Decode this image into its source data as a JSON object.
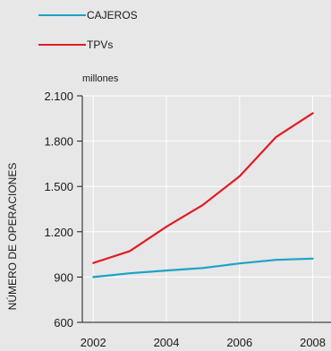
{
  "chart_data": {
    "type": "line",
    "unit_label": "millones",
    "ylabel": "NÚMERO DE OPERACIONES",
    "xlabel": "",
    "x": [
      2002,
      2003,
      2004,
      2005,
      2006,
      2007,
      2008
    ],
    "x_ticks": [
      "2002",
      "2004",
      "2006",
      "2008"
    ],
    "x_tick_values": [
      2002,
      2004,
      2006,
      2008
    ],
    "y_ticks": [
      "600",
      "900",
      "1.200",
      "1.500",
      "1.800",
      "2.100"
    ],
    "y_tick_values": [
      600,
      900,
      1200,
      1500,
      1800,
      2100
    ],
    "xlim": [
      2001.7,
      2008.5
    ],
    "ylim": [
      600,
      2100
    ],
    "grid": true,
    "legend_placement": "top-left",
    "series": [
      {
        "name": "CAJEROS",
        "color": "#1aa3c4",
        "values": [
          900,
          925,
          943,
          960,
          990,
          1014,
          1022
        ]
      },
      {
        "name": "TPVs",
        "color": "#e31b23",
        "values": [
          993,
          1072,
          1233,
          1378,
          1567,
          1828,
          1985
        ]
      }
    ]
  }
}
